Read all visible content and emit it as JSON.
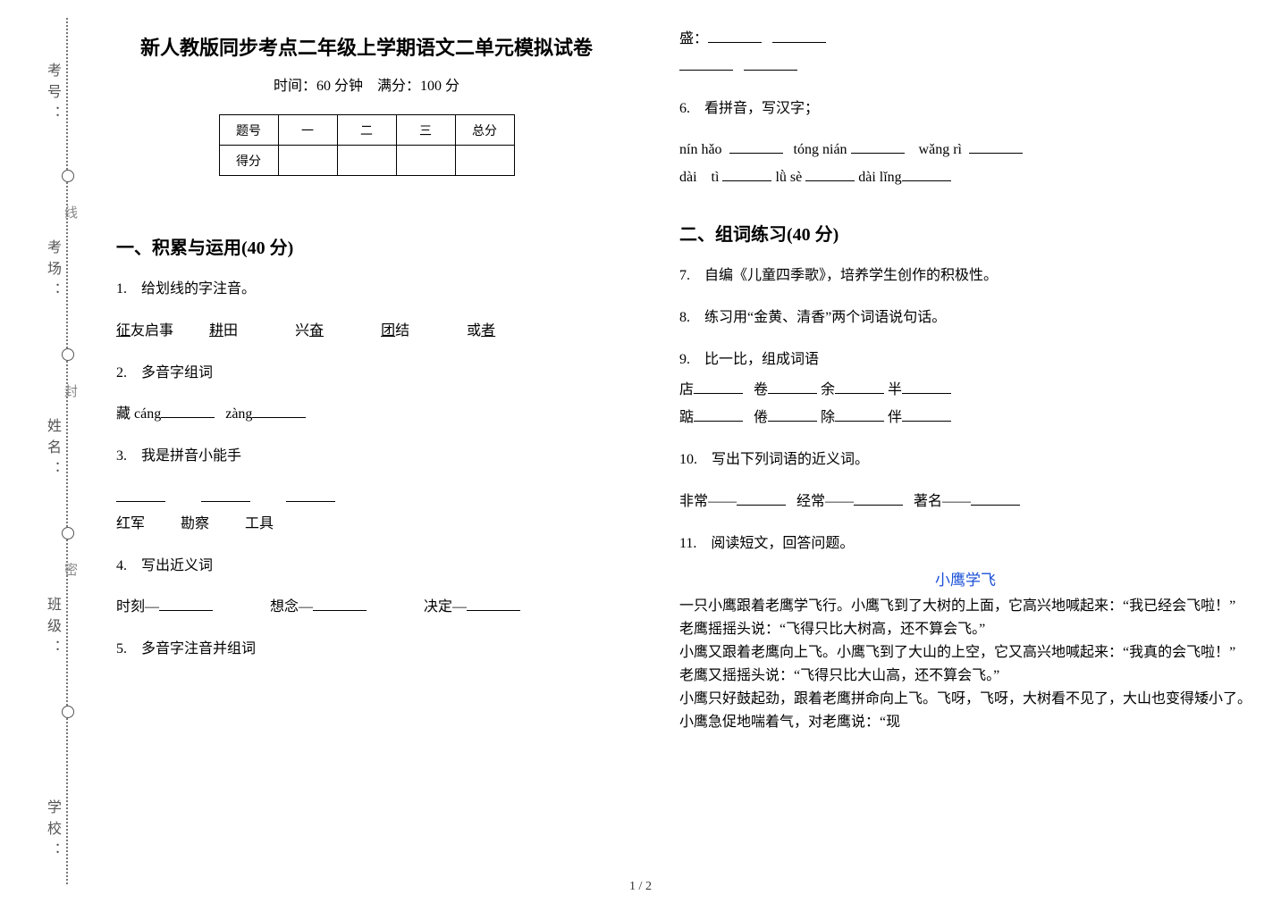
{
  "gutter": {
    "side_labels": [
      "考号：",
      "考场：",
      "姓名：",
      "班级：",
      "学校："
    ],
    "mid_labels": [
      "线",
      "封",
      "密"
    ]
  },
  "header": {
    "title": "新人教版同步考点二年级上学期语文二单元模拟试卷",
    "subtitle": "时间：60 分钟　满分：100 分"
  },
  "score_table": {
    "row1": [
      "题号",
      "一",
      "二",
      "三",
      "总分"
    ],
    "row2_head": "得分"
  },
  "section1": {
    "heading": "一、积累与运用(40 分)"
  },
  "q1": {
    "prompt": "1.　给划线的字注音。",
    "items": [
      {
        "u": "征",
        "rest": "友启事"
      },
      {
        "u": "耕",
        "rest": "田"
      },
      {
        "pre": "兴",
        "u": "奋",
        "rest": ""
      },
      {
        "u": "团",
        "rest": "结"
      },
      {
        "pre": "或",
        "u": "者",
        "rest": ""
      }
    ]
  },
  "q2": {
    "prompt": "2.　多音字组词",
    "linePrefix": "藏 cáng",
    "lineMid": "zàng"
  },
  "q3": {
    "prompt": "3.　我是拼音小能手",
    "items": [
      "红军",
      "勘察",
      "工具"
    ]
  },
  "q4": {
    "prompt": "4.　写出近义词",
    "items": [
      "时刻—",
      "想念—",
      "决定—"
    ]
  },
  "q5": {
    "prompt": "5.　多音字注音并组词"
  },
  "q5r": {
    "label": "盛："
  },
  "q6": {
    "prompt": "6.　看拼音，写汉字；",
    "row1": [
      "nín hǎo",
      "tóng nián",
      "wǎng rì"
    ],
    "row2": [
      "dài　tì",
      "lǜ sè",
      "dài lǐng"
    ]
  },
  "section2": {
    "heading": "二、组词练习(40 分)"
  },
  "q7": {
    "prompt": "7.　自编《儿童四季歌》，培养学生创作的积极性。"
  },
  "q8": {
    "prompt": "8.　练习用“金黄、清香”两个词语说句话。"
  },
  "q9": {
    "prompt": "9.　比一比，组成词语",
    "row1": [
      "店",
      "卷",
      "余",
      "半"
    ],
    "row2": [
      "踮",
      "倦",
      "除",
      "伴"
    ]
  },
  "q10": {
    "prompt": "10.　写出下列词语的近义词。",
    "items": [
      "非常——",
      "经常——",
      "著名——"
    ]
  },
  "q11": {
    "prompt": "11.　阅读短文，回答问题。",
    "title": "小鹰学飞",
    "body": "一只小鹰跟着老鹰学飞行。小鹰飞到了大树的上面，它高兴地喊起来：“我已经会飞啦！”\n老鹰摇摇头说：“飞得只比大树高，还不算会飞。”\n小鹰又跟着老鹰向上飞。小鹰飞到了大山的上空，它又高兴地喊起来：“我真的会飞啦！”\n老鹰又摇摇头说：“飞得只比大山高，还不算会飞。”\n小鹰只好鼓起劲，跟着老鹰拼命向上飞。飞呀，飞呀，大树看不见了，大山也变得矮小了。小鹰急促地喘着气，对老鹰说：“现"
  },
  "pagenum": "1 / 2"
}
